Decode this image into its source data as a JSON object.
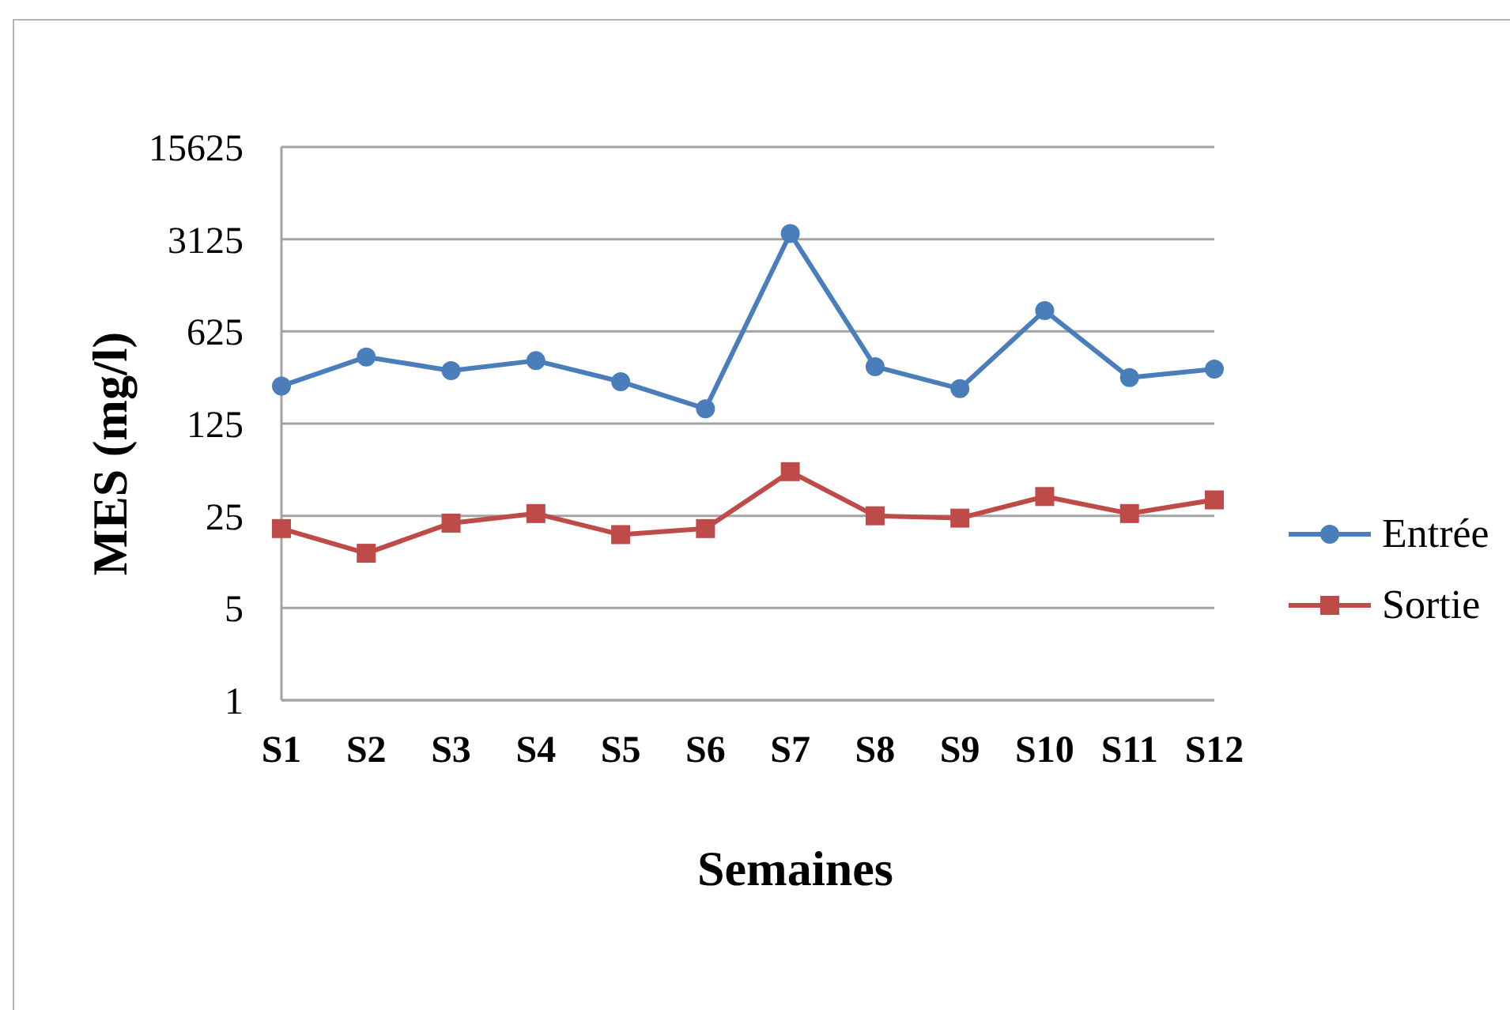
{
  "chart_data": {
    "type": "line",
    "xlabel": "Semaines",
    "ylabel": "MES (mg/l)",
    "categories": [
      "S1",
      "S2",
      "S3",
      "S4",
      "S5",
      "S6",
      "S7",
      "S8",
      "S9",
      "S10",
      "S11",
      "S12"
    ],
    "series": [
      {
        "name": "Entrée",
        "color": "#4a7ebb",
        "marker": "circle",
        "values": [
          241,
          400,
          315,
          375,
          260,
          162,
          3450,
          338,
          230,
          900,
          279,
          324
        ]
      },
      {
        "name": "Sortie",
        "color": "#be4b48",
        "marker": "square",
        "values": [
          20,
          13,
          22,
          26,
          18,
          20,
          54,
          25,
          24,
          35,
          26,
          33
        ]
      }
    ],
    "log": true,
    "ylim": [
      1,
      15625
    ],
    "yticks": [
      1,
      5,
      25,
      125,
      625,
      3125,
      15625
    ],
    "grid": "y",
    "legend": "right",
    "line_style": "solid"
  }
}
